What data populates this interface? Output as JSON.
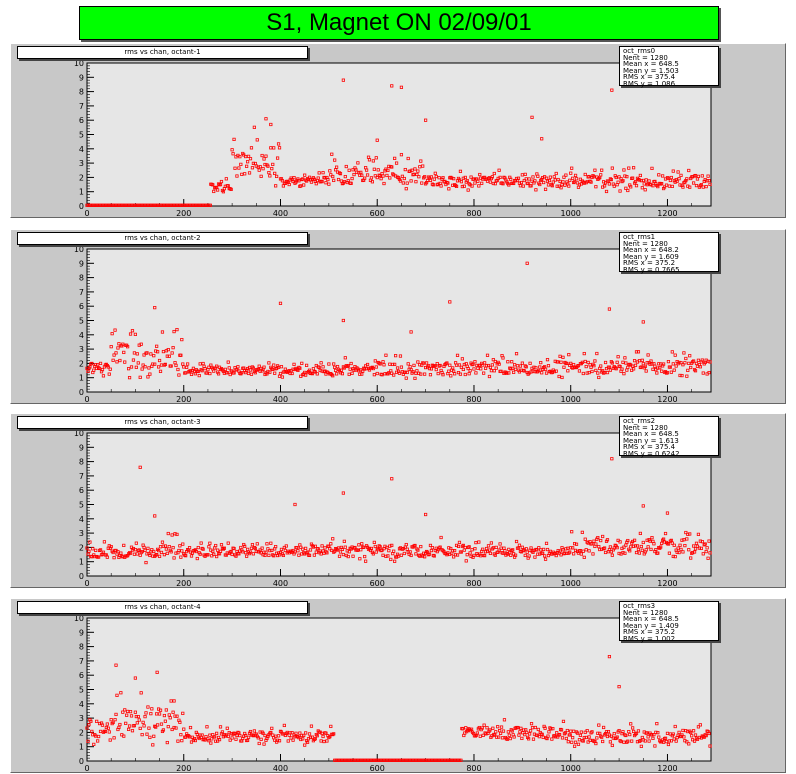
{
  "page": {
    "title": "S1, Magnet ON 02/09/01"
  },
  "chart_data": [
    {
      "type": "scatter",
      "title": "rms vs chan, octant-1",
      "stats": [
        {
          "key": "oct_rms0",
          "value": ""
        },
        {
          "key": "Nent",
          "value": "1280"
        },
        {
          "key": "Mean x",
          "value": "648.5"
        },
        {
          "key": "Mean y",
          "value": "1.503"
        },
        {
          "key": "RMS x",
          "value": "375.4"
        },
        {
          "key": "RMS y",
          "value": "1.086"
        }
      ],
      "xlim": [
        0,
        1290
      ],
      "ylim": [
        0,
        10
      ],
      "xticks": [
        0,
        200,
        400,
        600,
        800,
        1000,
        1200
      ],
      "yticks": [
        0,
        1,
        2,
        3,
        4,
        5,
        6,
        7,
        8,
        9,
        10
      ],
      "color": "#ff0000",
      "zero_runs": [
        [
          0,
          256
        ]
      ],
      "segments": [
        {
          "x": [
            256,
            300
          ],
          "base": 1.2,
          "spread": 0.9,
          "step": 2
        },
        {
          "x": [
            300,
            400
          ],
          "base": 2.8,
          "spread": 3.0,
          "step": 2
        },
        {
          "x": [
            400,
            500
          ],
          "base": 1.7,
          "spread": 0.7,
          "step": 2
        },
        {
          "x": [
            500,
            700
          ],
          "base": 2.0,
          "spread": 1.8,
          "step": 2
        },
        {
          "x": [
            700,
            1000
          ],
          "base": 1.6,
          "spread": 1.0,
          "step": 2
        },
        {
          "x": [
            1000,
            1290
          ],
          "base": 1.6,
          "spread": 1.2,
          "step": 2
        }
      ],
      "outliers": [
        [
          530,
          8.8
        ],
        [
          630,
          8.4
        ],
        [
          650,
          8.3
        ],
        [
          1085,
          8.1
        ],
        [
          700,
          6.0
        ],
        [
          920,
          6.2
        ],
        [
          370,
          6.1
        ],
        [
          380,
          5.7
        ],
        [
          600,
          4.6
        ],
        [
          940,
          4.7
        ]
      ]
    },
    {
      "type": "scatter",
      "title": "rms vs chan, octant-2",
      "stats": [
        {
          "key": "oct_rms1",
          "value": ""
        },
        {
          "key": "Nent",
          "value": "1280"
        },
        {
          "key": "Mean x",
          "value": "648.2"
        },
        {
          "key": "Mean y",
          "value": "1.609"
        },
        {
          "key": "RMS x",
          "value": "375.2"
        },
        {
          "key": "RMS y",
          "value": "0.7665"
        }
      ],
      "xlim": [
        0,
        1290
      ],
      "ylim": [
        0,
        10
      ],
      "xticks": [
        0,
        200,
        400,
        600,
        800,
        1000,
        1200
      ],
      "yticks": [
        0,
        1,
        2,
        3,
        4,
        5,
        6,
        7,
        8,
        9,
        10
      ],
      "color": "#ff0000",
      "zero_runs": [],
      "segments": [
        {
          "x": [
            0,
            50
          ],
          "base": 1.6,
          "spread": 1.0,
          "step": 2
        },
        {
          "x": [
            50,
            200
          ],
          "base": 2.2,
          "spread": 2.6,
          "step": 2
        },
        {
          "x": [
            200,
            500
          ],
          "base": 1.4,
          "spread": 0.8,
          "step": 2
        },
        {
          "x": [
            500,
            800
          ],
          "base": 1.5,
          "spread": 1.2,
          "step": 2
        },
        {
          "x": [
            800,
            1000
          ],
          "base": 1.6,
          "spread": 1.2,
          "step": 2
        },
        {
          "x": [
            1000,
            1290
          ],
          "base": 1.6,
          "spread": 1.4,
          "step": 2
        }
      ],
      "outliers": [
        [
          910,
          9.0
        ],
        [
          400,
          6.2
        ],
        [
          750,
          6.3
        ],
        [
          1080,
          5.8
        ],
        [
          530,
          5.0
        ],
        [
          140,
          5.9
        ],
        [
          1150,
          4.9
        ],
        [
          670,
          4.2
        ]
      ]
    },
    {
      "type": "scatter",
      "title": "rms vs chan, octant-3",
      "stats": [
        {
          "key": "oct_rms2",
          "value": ""
        },
        {
          "key": "Nent",
          "value": "1280"
        },
        {
          "key": "Mean x",
          "value": "648.5"
        },
        {
          "key": "Mean y",
          "value": "1.613"
        },
        {
          "key": "RMS x",
          "value": "375.4"
        },
        {
          "key": "RMS y",
          "value": "0.6242"
        }
      ],
      "xlim": [
        0,
        1290
      ],
      "ylim": [
        0,
        10
      ],
      "xticks": [
        0,
        200,
        400,
        600,
        800,
        1000,
        1200
      ],
      "yticks": [
        0,
        1,
        2,
        3,
        4,
        5,
        6,
        7,
        8,
        9,
        10
      ],
      "color": "#ff0000",
      "zero_runs": [],
      "segments": [
        {
          "x": [
            0,
            100
          ],
          "base": 1.5,
          "spread": 1.0,
          "step": 2
        },
        {
          "x": [
            100,
            200
          ],
          "base": 1.7,
          "spread": 1.6,
          "step": 2
        },
        {
          "x": [
            200,
            500
          ],
          "base": 1.6,
          "spread": 0.9,
          "step": 2
        },
        {
          "x": [
            500,
            800
          ],
          "base": 1.6,
          "spread": 1.2,
          "step": 2
        },
        {
          "x": [
            800,
            1000
          ],
          "base": 1.6,
          "spread": 0.9,
          "step": 2
        },
        {
          "x": [
            1000,
            1290
          ],
          "base": 1.9,
          "spread": 1.5,
          "step": 2
        }
      ],
      "outliers": [
        [
          1085,
          8.2
        ],
        [
          110,
          7.6
        ],
        [
          630,
          6.8
        ],
        [
          530,
          5.8
        ],
        [
          430,
          5.0
        ],
        [
          1150,
          4.9
        ],
        [
          700,
          4.3
        ],
        [
          140,
          4.2
        ],
        [
          1200,
          4.4
        ]
      ]
    },
    {
      "type": "scatter",
      "title": "rms vs chan, octant-4",
      "stats": [
        {
          "key": "oct_rms3",
          "value": ""
        },
        {
          "key": "Nent",
          "value": "1280"
        },
        {
          "key": "Mean x",
          "value": "648.5"
        },
        {
          "key": "Mean y",
          "value": "1.409"
        },
        {
          "key": "RMS x",
          "value": "375.2"
        },
        {
          "key": "RMS y",
          "value": "1.002"
        }
      ],
      "xlim": [
        0,
        1290
      ],
      "ylim": [
        0,
        10
      ],
      "xticks": [
        0,
        200,
        400,
        600,
        800,
        1000,
        1200
      ],
      "yticks": [
        0,
        1,
        2,
        3,
        4,
        5,
        6,
        7,
        8,
        9,
        10
      ],
      "color": "#ff0000",
      "zero_runs": [
        [
          512,
          775
        ]
      ],
      "segments": [
        {
          "x": [
            0,
            60
          ],
          "base": 2.0,
          "spread": 2.0,
          "step": 2
        },
        {
          "x": [
            60,
            200
          ],
          "base": 2.4,
          "spread": 2.8,
          "step": 2
        },
        {
          "x": [
            200,
            512
          ],
          "base": 1.6,
          "spread": 1.0,
          "step": 2
        },
        {
          "x": [
            775,
            1000
          ],
          "base": 1.8,
          "spread": 1.2,
          "step": 2
        },
        {
          "x": [
            1000,
            1290
          ],
          "base": 1.6,
          "spread": 1.2,
          "step": 2
        }
      ],
      "outliers": [
        [
          1080,
          7.3
        ],
        [
          60,
          6.7
        ],
        [
          145,
          6.2
        ],
        [
          100,
          5.8
        ],
        [
          1100,
          5.2
        ],
        [
          180,
          4.2
        ]
      ]
    }
  ]
}
